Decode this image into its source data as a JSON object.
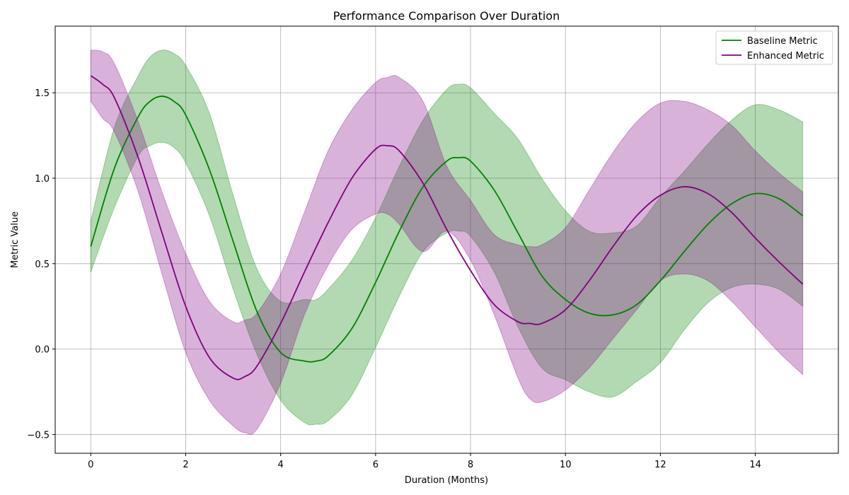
{
  "chart_data": {
    "type": "line",
    "title": "Performance Comparison Over Duration",
    "xlabel": "Duration (Months)",
    "ylabel": "Metric Value",
    "xlim": [
      -0.75,
      15.75
    ],
    "ylim": [
      -0.61,
      1.89
    ],
    "xticks": [
      0,
      2,
      4,
      6,
      8,
      10,
      12,
      14
    ],
    "yticks": [
      -0.5,
      0.0,
      0.5,
      1.0,
      1.5
    ],
    "xtick_labels": [
      "0",
      "2",
      "4",
      "6",
      "8",
      "10",
      "12",
      "14"
    ],
    "ytick_labels": [
      "−0.5",
      "0.0",
      "0.5",
      "1.0",
      "1.5"
    ],
    "grid": true,
    "legend_position": "top-right",
    "series": [
      {
        "name": "Baseline Metric",
        "color": "#008000",
        "band_color": "#008000",
        "x": [
          0,
          0.5,
          1,
          1.25,
          1.5,
          1.75,
          2,
          2.5,
          3,
          3.5,
          4,
          4.5,
          4.75,
          5,
          5.5,
          6,
          6.5,
          7,
          7.5,
          7.75,
          8,
          8.5,
          9,
          9.5,
          10,
          10.5,
          11,
          11.5,
          12,
          12.5,
          13,
          13.5,
          14,
          14.5,
          15
        ],
        "values": [
          0.6,
          1.06,
          1.36,
          1.45,
          1.48,
          1.45,
          1.37,
          1.05,
          0.63,
          0.22,
          -0.02,
          -0.07,
          -0.07,
          -0.04,
          0.12,
          0.39,
          0.69,
          0.95,
          1.1,
          1.12,
          1.1,
          0.93,
          0.68,
          0.43,
          0.29,
          0.21,
          0.2,
          0.26,
          0.4,
          0.57,
          0.73,
          0.85,
          0.91,
          0.88,
          0.78
        ],
        "lower": [
          0.45,
          0.83,
          1.13,
          1.19,
          1.21,
          1.18,
          1.09,
          0.78,
          0.35,
          -0.03,
          -0.3,
          -0.43,
          -0.44,
          -0.42,
          -0.27,
          0.01,
          0.31,
          0.57,
          0.68,
          0.69,
          0.66,
          0.45,
          0.13,
          -0.11,
          -0.18,
          -0.25,
          -0.28,
          -0.19,
          -0.08,
          0.11,
          0.27,
          0.36,
          0.38,
          0.35,
          0.25
        ],
        "upper": [
          0.75,
          1.3,
          1.6,
          1.71,
          1.75,
          1.73,
          1.66,
          1.38,
          0.9,
          0.47,
          0.28,
          0.29,
          0.29,
          0.35,
          0.52,
          0.77,
          1.07,
          1.34,
          1.52,
          1.55,
          1.53,
          1.38,
          1.23,
          1.0,
          0.81,
          0.69,
          0.68,
          0.72,
          0.89,
          1.04,
          1.2,
          1.34,
          1.43,
          1.4,
          1.33
        ]
      },
      {
        "name": "Enhanced Metric",
        "color": "#800080",
        "band_color": "#800080",
        "x": [
          0,
          0.25,
          0.5,
          1,
          1.5,
          2,
          2.5,
          3,
          3.25,
          3.5,
          4,
          4.5,
          5,
          5.5,
          6,
          6.25,
          6.5,
          7,
          7.5,
          8,
          8.5,
          9,
          9.25,
          9.5,
          10,
          10.5,
          11,
          11.5,
          12,
          12.5,
          13,
          13.5,
          14,
          14.5,
          15
        ],
        "values": [
          1.6,
          1.55,
          1.47,
          1.12,
          0.68,
          0.25,
          -0.05,
          -0.17,
          -0.16,
          -0.1,
          0.15,
          0.45,
          0.74,
          1.0,
          1.17,
          1.19,
          1.16,
          0.97,
          0.7,
          0.46,
          0.26,
          0.16,
          0.15,
          0.15,
          0.23,
          0.4,
          0.6,
          0.78,
          0.9,
          0.95,
          0.91,
          0.8,
          0.65,
          0.51,
          0.38
        ],
        "lower": [
          1.45,
          1.35,
          1.27,
          0.92,
          0.44,
          -0.02,
          -0.3,
          -0.45,
          -0.49,
          -0.47,
          -0.2,
          0.2,
          0.49,
          0.7,
          0.79,
          0.79,
          0.73,
          0.57,
          0.69,
          0.52,
          0.2,
          -0.17,
          -0.29,
          -0.31,
          -0.24,
          -0.11,
          0.06,
          0.23,
          0.4,
          0.44,
          0.4,
          0.28,
          0.13,
          -0.02,
          -0.15
        ],
        "upper": [
          1.75,
          1.74,
          1.67,
          1.33,
          0.92,
          0.56,
          0.28,
          0.16,
          0.17,
          0.21,
          0.44,
          0.8,
          1.16,
          1.4,
          1.56,
          1.59,
          1.59,
          1.45,
          1.07,
          0.87,
          0.67,
          0.61,
          0.6,
          0.61,
          0.71,
          0.93,
          1.15,
          1.33,
          1.44,
          1.45,
          1.4,
          1.31,
          1.16,
          1.03,
          0.92
        ]
      }
    ]
  }
}
